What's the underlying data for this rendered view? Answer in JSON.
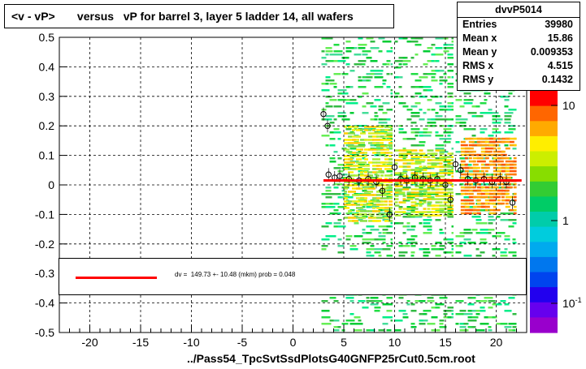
{
  "title": "<v - vP>       versus   vP for barrel 3, layer 5 ladder 14, all wafers",
  "stats": {
    "name": "dvvP5014",
    "rows": [
      {
        "label": "Entries",
        "value": "39980"
      },
      {
        "label": "Mean x",
        "value": "15.86"
      },
      {
        "label": "Mean y",
        "value": "0.009353"
      },
      {
        "label": "RMS x",
        "value": "4.515"
      },
      {
        "label": "RMS y",
        "value": "0.1432"
      }
    ]
  },
  "fit": {
    "text": "dv =  149.73 +- 10.48 (mkm) prob = 0.048",
    "color": "#ff0000"
  },
  "footer": "../Pass54_TpcSvtSsdPlotsG40GNFP25rCut0.5cm.root",
  "colorbar": {
    "tick_labels": [
      "10",
      "1",
      "10"
    ],
    "tick_suffix": "-1"
  },
  "chart_data": {
    "type": "heatmap",
    "xlim": [
      -23,
      23
    ],
    "ylim": [
      -0.5,
      0.5
    ],
    "x_ticks": [
      -20,
      -15,
      -10,
      -5,
      0,
      5,
      10,
      15,
      20
    ],
    "x_tick_labels": [
      "-20",
      "-15",
      "-10",
      "-5",
      "0",
      "5",
      "10",
      "15",
      "20"
    ],
    "y_ticks": [
      -0.5,
      -0.4,
      -0.3,
      -0.2,
      -0.1,
      0,
      0.1,
      0.2,
      0.3,
      0.4,
      0.5
    ],
    "y_tick_labels": [
      "-0.5",
      "-0.4",
      "-0.3",
      "-0.2",
      "-0.1",
      "0",
      "0.1",
      "0.2",
      "0.3",
      "0.4",
      "0.5"
    ],
    "grid": true,
    "density_bands": [
      {
        "x": [
          2.8,
          9.8
        ],
        "y": [
          -0.5,
          0.5
        ],
        "level": "low"
      },
      {
        "x": [
          10,
          15.8
        ],
        "y": [
          -0.5,
          0.5
        ],
        "level": "low"
      },
      {
        "x": [
          16,
          22
        ],
        "y": [
          -0.5,
          0.5
        ],
        "level": "low"
      },
      {
        "x": [
          5,
          9.8
        ],
        "y": [
          -0.12,
          0.2
        ],
        "level": "mid"
      },
      {
        "x": [
          10,
          15.8
        ],
        "y": [
          -0.1,
          0.12
        ],
        "level": "mid"
      },
      {
        "x": [
          16.5,
          22
        ],
        "y": [
          -0.1,
          0.16
        ],
        "level": "high"
      }
    ],
    "profile_points": [
      {
        "x": 3.0,
        "y": 0.24
      },
      {
        "x": 3.4,
        "y": 0.2
      },
      {
        "x": 3.5,
        "y": 0.035
      },
      {
        "x": 4.1,
        "y": 0.025
      },
      {
        "x": 4.6,
        "y": 0.03
      },
      {
        "x": 5.5,
        "y": 0.02
      },
      {
        "x": 6.5,
        "y": 0.015
      },
      {
        "x": 7.4,
        "y": 0.02
      },
      {
        "x": 8.2,
        "y": 0.01
      },
      {
        "x": 8.8,
        "y": -0.02
      },
      {
        "x": 9.5,
        "y": -0.1
      },
      {
        "x": 10.0,
        "y": 0.06
      },
      {
        "x": 10.6,
        "y": 0.02
      },
      {
        "x": 11.2,
        "y": 0.015
      },
      {
        "x": 12.0,
        "y": 0.025
      },
      {
        "x": 12.8,
        "y": 0.02
      },
      {
        "x": 13.5,
        "y": 0.015
      },
      {
        "x": 14.2,
        "y": 0.02
      },
      {
        "x": 15.0,
        "y": 0.0
      },
      {
        "x": 15.5,
        "y": -0.05
      },
      {
        "x": 16.0,
        "y": 0.07
      },
      {
        "x": 16.5,
        "y": 0.05
      },
      {
        "x": 17.2,
        "y": 0.02
      },
      {
        "x": 18.0,
        "y": 0.015
      },
      {
        "x": 18.8,
        "y": 0.02
      },
      {
        "x": 19.6,
        "y": 0.01
      },
      {
        "x": 20.4,
        "y": 0.02
      },
      {
        "x": 21.0,
        "y": 0.01
      },
      {
        "x": 21.6,
        "y": -0.06
      }
    ],
    "fit_line": {
      "x": [
        3,
        22.5
      ],
      "y": [
        0.015,
        0.015
      ]
    }
  }
}
